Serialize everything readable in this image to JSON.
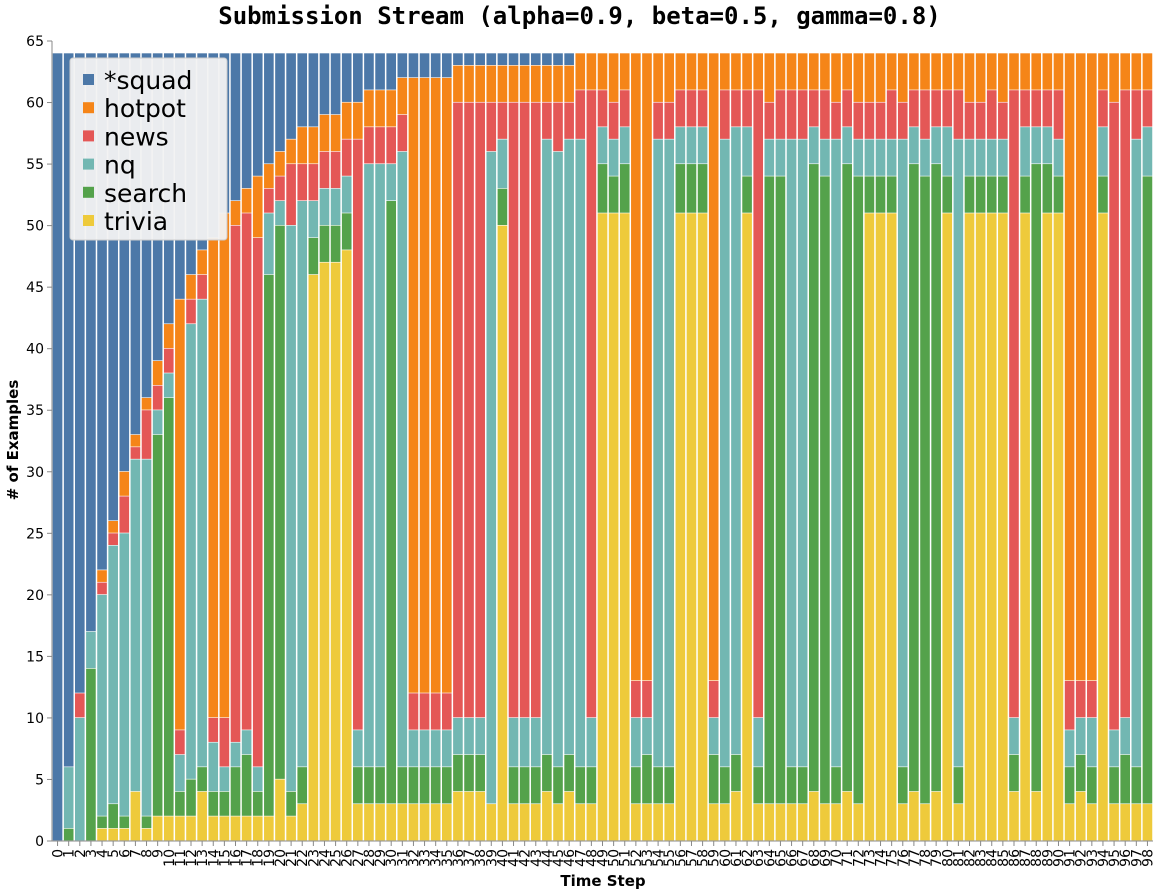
{
  "chart_data": {
    "type": "bar",
    "stacked": true,
    "title": "Submission Stream (alpha=0.9, beta=0.5, gamma=0.8)",
    "xlabel": "Time Step",
    "ylabel": "# of Examples",
    "ylim": [
      0,
      65
    ],
    "yticks": [
      0,
      5,
      10,
      15,
      20,
      25,
      30,
      35,
      40,
      45,
      50,
      55,
      60,
      65
    ],
    "grid": false,
    "legend_position": "top-left",
    "stack_order": [
      "trivia",
      "search",
      "nq",
      "news",
      "hotpot",
      "*squad"
    ],
    "legend_order": [
      "*squad",
      "hotpot",
      "news",
      "nq",
      "search",
      "trivia"
    ],
    "colors": {
      "*squad": "#4c78a8",
      "hotpot": "#f58518",
      "news": "#e45756",
      "nq": "#72b7b2",
      "search": "#54a24b",
      "trivia": "#eeca3b"
    },
    "steps": [
      {
        "x": 0,
        "trivia": 0,
        "search": 0,
        "nq": 0,
        "news": 0,
        "hotpot": 0,
        "*squad": 64
      },
      {
        "x": 1,
        "trivia": 0,
        "search": 1,
        "nq": 5,
        "news": 0,
        "hotpot": 0,
        "*squad": 58
      },
      {
        "x": 2,
        "trivia": 0,
        "search": 0,
        "nq": 10,
        "news": 2,
        "hotpot": 0,
        "*squad": 52
      },
      {
        "x": 3,
        "trivia": 0,
        "search": 14,
        "nq": 3,
        "news": 0,
        "hotpot": 0,
        "*squad": 47
      },
      {
        "x": 4,
        "trivia": 1,
        "search": 1,
        "nq": 18,
        "news": 1,
        "hotpot": 1,
        "*squad": 42
      },
      {
        "x": 5,
        "trivia": 1,
        "search": 2,
        "nq": 21,
        "news": 1,
        "hotpot": 1,
        "*squad": 38
      },
      {
        "x": 6,
        "trivia": 1,
        "search": 1,
        "nq": 23,
        "news": 3,
        "hotpot": 2,
        "*squad": 34
      },
      {
        "x": 7,
        "trivia": 4,
        "search": 0,
        "nq": 27,
        "news": 1,
        "hotpot": 1,
        "*squad": 31
      },
      {
        "x": 8,
        "trivia": 1,
        "search": 1,
        "nq": 29,
        "news": 4,
        "hotpot": 1,
        "*squad": 28
      },
      {
        "x": 9,
        "trivia": 2,
        "search": 31,
        "nq": 2,
        "news": 2,
        "hotpot": 2,
        "*squad": 25
      },
      {
        "x": 10,
        "trivia": 2,
        "search": 34,
        "nq": 2,
        "news": 2,
        "hotpot": 2,
        "*squad": 22
      },
      {
        "x": 11,
        "trivia": 2,
        "search": 2,
        "nq": 3,
        "news": 2,
        "hotpot": 35,
        "*squad": 20
      },
      {
        "x": 12,
        "trivia": 2,
        "search": 3,
        "nq": 37,
        "news": 2,
        "hotpot": 2,
        "*squad": 18
      },
      {
        "x": 13,
        "trivia": 4,
        "search": 2,
        "nq": 38,
        "news": 2,
        "hotpot": 2,
        "*squad": 16
      },
      {
        "x": 14,
        "trivia": 2,
        "search": 2,
        "nq": 4,
        "news": 2,
        "hotpot": 39,
        "*squad": 15
      },
      {
        "x": 15,
        "trivia": 2,
        "search": 2,
        "nq": 2,
        "news": 4,
        "hotpot": 41,
        "*squad": 13
      },
      {
        "x": 16,
        "trivia": 2,
        "search": 4,
        "nq": 2,
        "news": 42,
        "hotpot": 2,
        "*squad": 12
      },
      {
        "x": 17,
        "trivia": 2,
        "search": 5,
        "nq": 2,
        "news": 42,
        "hotpot": 2,
        "*squad": 11
      },
      {
        "x": 18,
        "trivia": 2,
        "search": 2,
        "nq": 2,
        "news": 43,
        "hotpot": 5,
        "*squad": 10
      },
      {
        "x": 19,
        "trivia": 2,
        "search": 44,
        "nq": 5,
        "news": 2,
        "hotpot": 2,
        "*squad": 9
      },
      {
        "x": 20,
        "trivia": 5,
        "search": 45,
        "nq": 2,
        "news": 2,
        "hotpot": 2,
        "*squad": 8
      },
      {
        "x": 21,
        "trivia": 2,
        "search": 2,
        "nq": 46,
        "news": 5,
        "hotpot": 2,
        "*squad": 7
      },
      {
        "x": 22,
        "trivia": 3,
        "search": 3,
        "nq": 46,
        "news": 3,
        "hotpot": 3,
        "*squad": 6
      },
      {
        "x": 23,
        "trivia": 46,
        "search": 3,
        "nq": 3,
        "news": 3,
        "hotpot": 3,
        "*squad": 6
      },
      {
        "x": 24,
        "trivia": 47,
        "search": 3,
        "nq": 3,
        "news": 3,
        "hotpot": 3,
        "*squad": 5
      },
      {
        "x": 25,
        "trivia": 47,
        "search": 3,
        "nq": 3,
        "news": 3,
        "hotpot": 3,
        "*squad": 5
      },
      {
        "x": 26,
        "trivia": 48,
        "search": 3,
        "nq": 3,
        "news": 3,
        "hotpot": 3,
        "*squad": 4
      },
      {
        "x": 27,
        "trivia": 3,
        "search": 3,
        "nq": 3,
        "news": 48,
        "hotpot": 3,
        "*squad": 4
      },
      {
        "x": 28,
        "trivia": 3,
        "search": 3,
        "nq": 49,
        "news": 3,
        "hotpot": 3,
        "*squad": 3
      },
      {
        "x": 29,
        "trivia": 3,
        "search": 3,
        "nq": 49,
        "news": 3,
        "hotpot": 3,
        "*squad": 3
      },
      {
        "x": 30,
        "trivia": 3,
        "search": 49,
        "nq": 3,
        "news": 3,
        "hotpot": 3,
        "*squad": 3
      },
      {
        "x": 31,
        "trivia": 3,
        "search": 3,
        "nq": 50,
        "news": 3,
        "hotpot": 3,
        "*squad": 2
      },
      {
        "x": 32,
        "trivia": 3,
        "search": 3,
        "nq": 3,
        "news": 3,
        "hotpot": 50,
        "*squad": 2
      },
      {
        "x": 33,
        "trivia": 3,
        "search": 3,
        "nq": 3,
        "news": 3,
        "hotpot": 50,
        "*squad": 2
      },
      {
        "x": 34,
        "trivia": 3,
        "search": 3,
        "nq": 3,
        "news": 3,
        "hotpot": 50,
        "*squad": 2
      },
      {
        "x": 35,
        "trivia": 3,
        "search": 3,
        "nq": 3,
        "news": 3,
        "hotpot": 50,
        "*squad": 2
      },
      {
        "x": 36,
        "trivia": 4,
        "search": 3,
        "nq": 3,
        "news": 50,
        "hotpot": 3,
        "*squad": 1
      },
      {
        "x": 37,
        "trivia": 4,
        "search": 3,
        "nq": 3,
        "news": 50,
        "hotpot": 3,
        "*squad": 1
      },
      {
        "x": 38,
        "trivia": 4,
        "search": 3,
        "nq": 3,
        "news": 50,
        "hotpot": 3,
        "*squad": 1
      },
      {
        "x": 39,
        "trivia": 3,
        "search": 0,
        "nq": 53,
        "news": 4,
        "hotpot": 3,
        "*squad": 1
      },
      {
        "x": 40,
        "trivia": 50,
        "search": 3,
        "nq": 4,
        "news": 3,
        "hotpot": 3,
        "*squad": 1
      },
      {
        "x": 41,
        "trivia": 3,
        "search": 3,
        "nq": 4,
        "news": 50,
        "hotpot": 3,
        "*squad": 1
      },
      {
        "x": 42,
        "trivia": 3,
        "search": 3,
        "nq": 4,
        "news": 50,
        "hotpot": 3,
        "*squad": 1
      },
      {
        "x": 43,
        "trivia": 3,
        "search": 3,
        "nq": 4,
        "news": 50,
        "hotpot": 3,
        "*squad": 1
      },
      {
        "x": 44,
        "trivia": 4,
        "search": 3,
        "nq": 50,
        "news": 3,
        "hotpot": 3,
        "*squad": 1
      },
      {
        "x": 45,
        "trivia": 3,
        "search": 3,
        "nq": 50,
        "news": 4,
        "hotpot": 3,
        "*squad": 1
      },
      {
        "x": 46,
        "trivia": 4,
        "search": 3,
        "nq": 50,
        "news": 3,
        "hotpot": 3,
        "*squad": 1
      },
      {
        "x": 47,
        "trivia": 3,
        "search": 3,
        "nq": 51,
        "news": 4,
        "hotpot": 3,
        "*squad": 0
      },
      {
        "x": 48,
        "trivia": 3,
        "search": 3,
        "nq": 4,
        "news": 51,
        "hotpot": 3,
        "*squad": 0
      },
      {
        "x": 49,
        "trivia": 51,
        "search": 4,
        "nq": 3,
        "news": 3,
        "hotpot": 3,
        "*squad": 0
      },
      {
        "x": 50,
        "trivia": 51,
        "search": 3,
        "nq": 3,
        "news": 3,
        "hotpot": 4,
        "*squad": 0
      },
      {
        "x": 51,
        "trivia": 51,
        "search": 4,
        "nq": 3,
        "news": 3,
        "hotpot": 3,
        "*squad": 0
      },
      {
        "x": 52,
        "trivia": 3,
        "search": 3,
        "nq": 4,
        "news": 3,
        "hotpot": 51,
        "*squad": 0
      },
      {
        "x": 53,
        "trivia": 3,
        "search": 4,
        "nq": 3,
        "news": 3,
        "hotpot": 51,
        "*squad": 0
      },
      {
        "x": 54,
        "trivia": 3,
        "search": 3,
        "nq": 51,
        "news": 3,
        "hotpot": 4,
        "*squad": 0
      },
      {
        "x": 55,
        "trivia": 3,
        "search": 3,
        "nq": 51,
        "news": 3,
        "hotpot": 4,
        "*squad": 0
      },
      {
        "x": 56,
        "trivia": 51,
        "search": 4,
        "nq": 3,
        "news": 3,
        "hotpot": 3,
        "*squad": 0
      },
      {
        "x": 57,
        "trivia": 51,
        "search": 4,
        "nq": 3,
        "news": 3,
        "hotpot": 3,
        "*squad": 0
      },
      {
        "x": 58,
        "trivia": 51,
        "search": 4,
        "nq": 3,
        "news": 3,
        "hotpot": 3,
        "*squad": 0
      },
      {
        "x": 59,
        "trivia": 3,
        "search": 4,
        "nq": 3,
        "news": 3,
        "hotpot": 51,
        "*squad": 0
      },
      {
        "x": 60,
        "trivia": 3,
        "search": 3,
        "nq": 51,
        "news": 4,
        "hotpot": 3,
        "*squad": 0
      },
      {
        "x": 61,
        "trivia": 4,
        "search": 3,
        "nq": 51,
        "news": 3,
        "hotpot": 3,
        "*squad": 0
      },
      {
        "x": 62,
        "trivia": 51,
        "search": 3,
        "nq": 4,
        "news": 3,
        "hotpot": 3,
        "*squad": 0
      },
      {
        "x": 63,
        "trivia": 3,
        "search": 3,
        "nq": 4,
        "news": 51,
        "hotpot": 3,
        "*squad": 0
      },
      {
        "x": 64,
        "trivia": 3,
        "search": 51,
        "nq": 3,
        "news": 3,
        "hotpot": 4,
        "*squad": 0
      },
      {
        "x": 65,
        "trivia": 3,
        "search": 51,
        "nq": 3,
        "news": 4,
        "hotpot": 3,
        "*squad": 0
      },
      {
        "x": 66,
        "trivia": 3,
        "search": 3,
        "nq": 51,
        "news": 4,
        "hotpot": 3,
        "*squad": 0
      },
      {
        "x": 67,
        "trivia": 3,
        "search": 3,
        "nq": 51,
        "news": 4,
        "hotpot": 3,
        "*squad": 0
      },
      {
        "x": 68,
        "trivia": 4,
        "search": 51,
        "nq": 3,
        "news": 3,
        "hotpot": 3,
        "*squad": 0
      },
      {
        "x": 69,
        "trivia": 3,
        "search": 51,
        "nq": 3,
        "news": 4,
        "hotpot": 3,
        "*squad": 0
      },
      {
        "x": 70,
        "trivia": 3,
        "search": 3,
        "nq": 51,
        "news": 3,
        "hotpot": 4,
        "*squad": 0
      },
      {
        "x": 71,
        "trivia": 4,
        "search": 51,
        "nq": 3,
        "news": 3,
        "hotpot": 3,
        "*squad": 0
      },
      {
        "x": 72,
        "trivia": 3,
        "search": 51,
        "nq": 3,
        "news": 3,
        "hotpot": 4,
        "*squad": 0
      },
      {
        "x": 73,
        "trivia": 51,
        "search": 3,
        "nq": 3,
        "news": 3,
        "hotpot": 4,
        "*squad": 0
      },
      {
        "x": 74,
        "trivia": 51,
        "search": 3,
        "nq": 3,
        "news": 3,
        "hotpot": 4,
        "*squad": 0
      },
      {
        "x": 75,
        "trivia": 51,
        "search": 3,
        "nq": 3,
        "news": 4,
        "hotpot": 3,
        "*squad": 0
      },
      {
        "x": 76,
        "trivia": 3,
        "search": 3,
        "nq": 51,
        "news": 3,
        "hotpot": 4,
        "*squad": 0
      },
      {
        "x": 77,
        "trivia": 4,
        "search": 51,
        "nq": 3,
        "news": 3,
        "hotpot": 3,
        "*squad": 0
      },
      {
        "x": 78,
        "trivia": 3,
        "search": 51,
        "nq": 3,
        "news": 4,
        "hotpot": 3,
        "*squad": 0
      },
      {
        "x": 79,
        "trivia": 4,
        "search": 51,
        "nq": 3,
        "news": 3,
        "hotpot": 3,
        "*squad": 0
      },
      {
        "x": 80,
        "trivia": 51,
        "search": 3,
        "nq": 4,
        "news": 3,
        "hotpot": 3,
        "*squad": 0
      },
      {
        "x": 81,
        "trivia": 3,
        "search": 3,
        "nq": 51,
        "news": 4,
        "hotpot": 3,
        "*squad": 0
      },
      {
        "x": 82,
        "trivia": 51,
        "search": 3,
        "nq": 3,
        "news": 3,
        "hotpot": 4,
        "*squad": 0
      },
      {
        "x": 83,
        "trivia": 51,
        "search": 3,
        "nq": 3,
        "news": 3,
        "hotpot": 4,
        "*squad": 0
      },
      {
        "x": 84,
        "trivia": 51,
        "search": 3,
        "nq": 3,
        "news": 4,
        "hotpot": 3,
        "*squad": 0
      },
      {
        "x": 85,
        "trivia": 51,
        "search": 3,
        "nq": 3,
        "news": 3,
        "hotpot": 4,
        "*squad": 0
      },
      {
        "x": 86,
        "trivia": 4,
        "search": 3,
        "nq": 3,
        "news": 51,
        "hotpot": 3,
        "*squad": 0
      },
      {
        "x": 87,
        "trivia": 51,
        "search": 3,
        "nq": 4,
        "news": 3,
        "hotpot": 3,
        "*squad": 0
      },
      {
        "x": 88,
        "trivia": 4,
        "search": 51,
        "nq": 3,
        "news": 3,
        "hotpot": 3,
        "*squad": 0
      },
      {
        "x": 89,
        "trivia": 51,
        "search": 4,
        "nq": 3,
        "news": 3,
        "hotpot": 3,
        "*squad": 0
      },
      {
        "x": 90,
        "trivia": 51,
        "search": 3,
        "nq": 3,
        "news": 4,
        "hotpot": 3,
        "*squad": 0
      },
      {
        "x": 91,
        "trivia": 3,
        "search": 3,
        "nq": 3,
        "news": 4,
        "hotpot": 51,
        "*squad": 0
      },
      {
        "x": 92,
        "trivia": 4,
        "search": 3,
        "nq": 3,
        "news": 3,
        "hotpot": 51,
        "*squad": 0
      },
      {
        "x": 93,
        "trivia": 3,
        "search": 3,
        "nq": 4,
        "news": 3,
        "hotpot": 51,
        "*squad": 0
      },
      {
        "x": 94,
        "trivia": 51,
        "search": 3,
        "nq": 4,
        "news": 3,
        "hotpot": 3,
        "*squad": 0
      },
      {
        "x": 95,
        "trivia": 3,
        "search": 3,
        "nq": 3,
        "news": 51,
        "hotpot": 4,
        "*squad": 0
      },
      {
        "x": 96,
        "trivia": 3,
        "search": 4,
        "nq": 3,
        "news": 51,
        "hotpot": 3,
        "*squad": 0
      },
      {
        "x": 97,
        "trivia": 3,
        "search": 3,
        "nq": 51,
        "news": 4,
        "hotpot": 3,
        "*squad": 0
      },
      {
        "x": 98,
        "trivia": 3,
        "search": 51,
        "nq": 4,
        "news": 3,
        "hotpot": 3,
        "*squad": 0
      }
    ]
  }
}
